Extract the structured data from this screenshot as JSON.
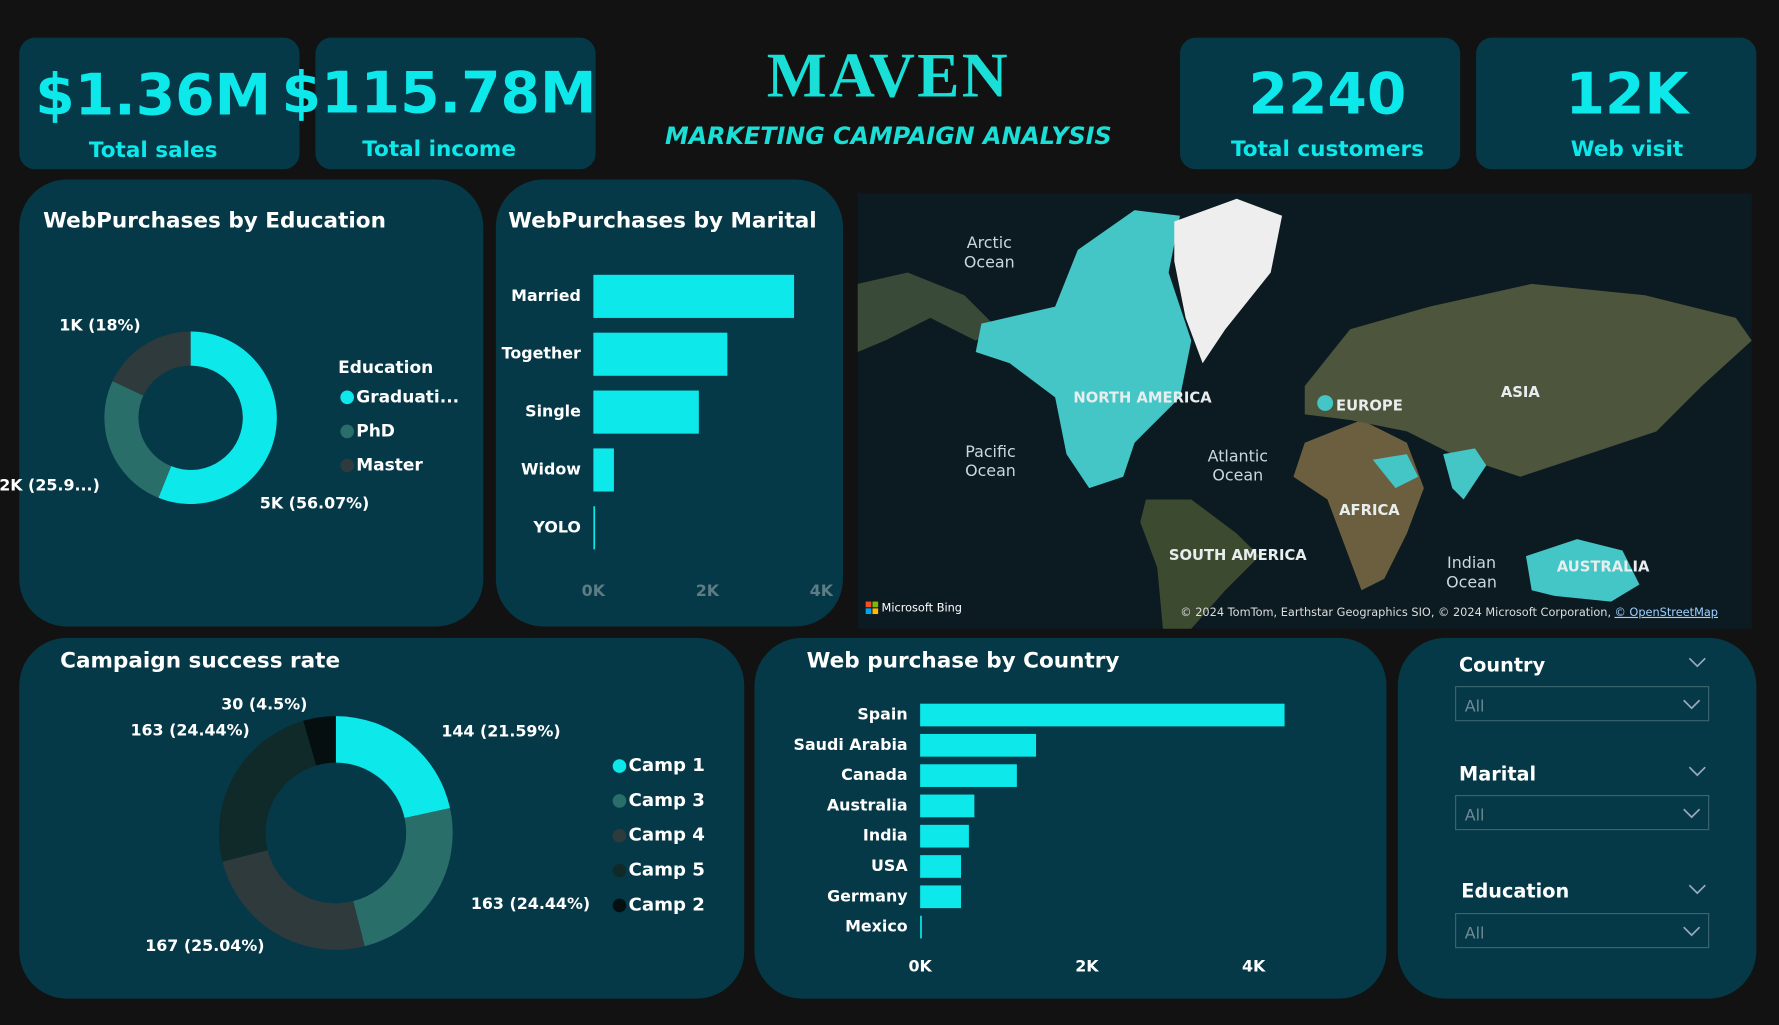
{
  "header": {
    "title": "MAVEN",
    "subtitle": "MARKETING CAMPAIGN ANALYSIS"
  },
  "kpis": [
    {
      "value": "$1.36M",
      "label": "Total sales"
    },
    {
      "value": "$115.78M",
      "label": "Total income"
    },
    {
      "value": "2240",
      "label": "Total customers"
    },
    {
      "value": "12K",
      "label": "Web visit"
    }
  ],
  "chart_data": [
    {
      "type": "donut",
      "title": "WebPurchases by Education",
      "legend_title": "Education",
      "categories": [
        "Graduati...",
        "PhD",
        "Master"
      ],
      "values": [
        4600,
        2125,
        1477
      ],
      "value_labels": [
        "5K (56.07%)",
        "2K (25.9...)",
        "1K (18%)"
      ],
      "colors": [
        "#0de8ea",
        "#2a6e6a",
        "#2f3a3d"
      ]
    },
    {
      "type": "hbar",
      "title": "WebPurchases by Marital",
      "categories": [
        "Married",
        "Together",
        "Single",
        "Widow",
        "YOLO"
      ],
      "values": [
        3520,
        2350,
        1850,
        360,
        20
      ],
      "color": "#0de8ea",
      "xlim": [
        0,
        4000
      ],
      "xticks": [
        {
          "value": 0,
          "label": "0K"
        },
        {
          "value": 2000,
          "label": "2K"
        },
        {
          "value": 4000,
          "label": "4K"
        }
      ]
    },
    {
      "type": "donut",
      "title": "Campaign success rate",
      "categories": [
        "Camp 1",
        "Camp 3",
        "Camp 4",
        "Camp 5",
        "Camp 2"
      ],
      "values": [
        144,
        163,
        167,
        163,
        30
      ],
      "value_labels": [
        "144 (21.59%)",
        "163 (24.44%)",
        "167 (25.04%)",
        "163 (24.44%)",
        "30 (4.5%)"
      ],
      "colors": [
        "#0de8ea",
        "#2a6e6a",
        "#2f3a3d",
        "#0f2a29",
        "#050f10"
      ]
    },
    {
      "type": "hbar",
      "title": "Web purchase by Country",
      "categories": [
        "Spain",
        "Saudi Arabia",
        "Canada",
        "Australia",
        "India",
        "USA",
        "Germany",
        "Mexico"
      ],
      "values": [
        4370,
        1390,
        1160,
        650,
        585,
        490,
        490,
        14
      ],
      "color": "#0de8ea",
      "xlim": [
        0,
        4000
      ],
      "xticks": [
        {
          "value": 0,
          "label": "0K"
        },
        {
          "value": 2000,
          "label": "2K"
        },
        {
          "value": 4000,
          "label": "4K"
        }
      ]
    }
  ],
  "map": {
    "labels": [
      "Arctic Ocean",
      "NORTH AMERICA",
      "EUROPE",
      "ASIA",
      "Pacific Ocean",
      "Atlantic Ocean",
      "AFRICA",
      "SOUTH AMERICA",
      "Indian Ocean",
      "AUSTRALIA"
    ],
    "brand": "Microsoft Bing",
    "attribution": "© 2024 TomTom, Earthstar Geographics SIO, © 2024 Microsoft Corporation,",
    "osm": "© OpenStreetMap"
  },
  "filters": [
    {
      "label": "Country",
      "value": "All"
    },
    {
      "label": "Marital",
      "value": "All"
    },
    {
      "label": "Education",
      "value": "All"
    }
  ]
}
